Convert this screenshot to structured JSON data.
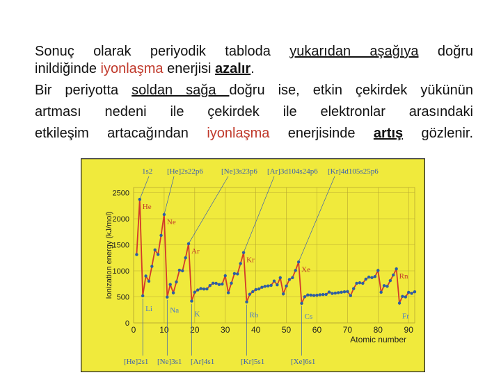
{
  "text": {
    "p1_a": "Sonuç olarak periyodik tabloda ",
    "p1_u": "yukarıdan aşağıya",
    "p1_b": " doğru",
    "p1_c": "inildiğinde ",
    "p1_red": "iyonlaşma",
    "p1_d": " enerjisi ",
    "p1_bold": "azalır",
    "p1_e": ".",
    "p2_a": "Bir periyotta ",
    "p2_u": "soldan sağa ",
    "p2_b": "doğru ise, etkin çekirdek yükünün",
    "p2_c": "artması nedeni ile çekirdek ile elektronlar arasındaki",
    "p2_d": "etkileşim artacağından ",
    "p2_red": "iyonlaşma",
    "p2_e": " enerjisinde ",
    "p2_bold": "artış",
    "p2_f": " gözlenir."
  },
  "chart_data": {
    "type": "line",
    "ylabel": "Ionization energy (kJ/mol)",
    "xlabel": "Atomic number",
    "xlim": [
      0,
      92
    ],
    "ylim": [
      0,
      2600
    ],
    "xticks": [
      "0",
      "10",
      "20",
      "30",
      "40",
      "50",
      "60",
      "70",
      "80",
      "90"
    ],
    "yticks": [
      "0",
      "500",
      "1000",
      "1500",
      "2000",
      "2500"
    ],
    "background": "#f0ea3c",
    "frame": "#222222",
    "line_color": "#d23a2a",
    "point_color": "#2a5fa5",
    "label_color": "#c23a2a",
    "low_label_color": "#4a7ac8",
    "top_configs": [
      "1s2",
      "[He]2s22p6",
      "[Ne]3s23p6",
      "[Ar]3d104s24p6",
      "[Kr]4d105s25p6"
    ],
    "bottom_configs": [
      "[He]2s1",
      "[Ne]3s1",
      "[Ar]4s1",
      "[Kr]5s1",
      "[Xe]6s1"
    ],
    "series": [
      {
        "x": [
          1,
          2,
          3,
          4,
          5,
          6,
          7,
          8,
          9,
          10,
          11,
          12,
          13,
          14,
          15,
          16,
          17,
          18,
          19,
          20,
          21,
          22,
          23,
          24,
          25,
          26,
          27,
          28,
          29,
          30,
          31,
          32,
          33,
          34,
          35,
          36,
          37,
          38,
          39,
          40,
          41,
          42,
          43,
          44,
          45,
          46,
          47,
          48,
          49,
          50,
          51,
          52,
          53,
          54,
          55,
          56,
          57,
          58,
          59,
          60,
          61,
          62,
          63,
          64,
          65,
          66,
          67,
          68,
          69,
          70,
          71,
          72,
          73,
          74,
          75,
          76,
          77,
          78,
          79,
          80,
          81,
          82,
          83,
          84,
          85,
          86,
          87,
          88,
          89,
          90,
          91,
          92
        ],
        "values": [
          1312,
          2372,
          520,
          900,
          801,
          1086,
          1402,
          1314,
          1681,
          2081,
          496,
          738,
          578,
          787,
          1012,
          1000,
          1251,
          1521,
          419,
          590,
          633,
          659,
          651,
          653,
          717,
          763,
          760,
          737,
          746,
          906,
          579,
          762,
          947,
          941,
          1140,
          1351,
          403,
          550,
          600,
          640,
          652,
          684,
          702,
          710,
          720,
          804,
          731,
          868,
          558,
          709,
          834,
          869,
          1008,
          1170,
          376,
          503,
          538,
          534,
          527,
          533,
          540,
          545,
          547,
          593,
          566,
          573,
          581,
          589,
          597,
          603,
          524,
          659,
          761,
          770,
          760,
          840,
          880,
          870,
          890,
          1007,
          589,
          716,
          703,
          812,
          920,
          1037,
          380,
          509,
          499,
          587,
          568,
          598
        ]
      }
    ],
    "element_labels": [
      {
        "text": "He",
        "z": 2
      },
      {
        "text": "Ne",
        "z": 10
      },
      {
        "text": "Ar",
        "z": 18
      },
      {
        "text": "Kr",
        "z": 36
      },
      {
        "text": "Xe",
        "z": 54
      },
      {
        "text": "Rn",
        "z": 86
      },
      {
        "text": "Li",
        "z": 3
      },
      {
        "text": "Na",
        "z": 11
      },
      {
        "text": "K",
        "z": 19
      },
      {
        "text": "Rb",
        "z": 37
      },
      {
        "text": "Cs",
        "z": 55
      },
      {
        "text": "Fr",
        "z": 87
      }
    ]
  }
}
